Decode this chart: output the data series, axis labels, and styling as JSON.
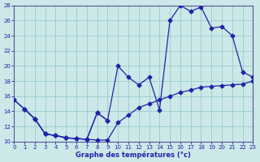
{
  "xlabel": "Graphe des températures (°c)",
  "xlim": [
    0,
    23
  ],
  "ylim": [
    10,
    28
  ],
  "xticks": [
    0,
    1,
    2,
    3,
    4,
    5,
    6,
    7,
    8,
    9,
    10,
    11,
    12,
    13,
    14,
    15,
    16,
    17,
    18,
    19,
    20,
    21,
    22,
    23
  ],
  "yticks": [
    10,
    12,
    14,
    16,
    18,
    20,
    22,
    24,
    26,
    28
  ],
  "background_color": "#cce8e8",
  "grid_color": "#99cccc",
  "line_color": "#2222aa",
  "line_A": {
    "x": [
      0,
      1,
      2,
      3,
      4,
      5,
      6,
      7,
      8,
      9,
      10,
      11,
      12,
      13,
      14,
      15,
      16,
      17,
      18,
      19,
      20,
      21,
      22,
      23
    ],
    "y": [
      15.5,
      14.3,
      13.0,
      11.0,
      10.8,
      10.5,
      10.4,
      10.3,
      13.8,
      12.8,
      20.0,
      18.5,
      17.5,
      18.5,
      14.2,
      26.0,
      28.0,
      27.2,
      27.8,
      25.0,
      25.2,
      24.0,
      19.2,
      18.5
    ]
  },
  "line_B": {
    "x": [
      0,
      1,
      2,
      3,
      4,
      5,
      6,
      7,
      8,
      9,
      10,
      11,
      12,
      13,
      14,
      15,
      16,
      17,
      18,
      19,
      20,
      21,
      22,
      23
    ],
    "y": [
      15.5,
      14.3,
      13.0,
      11.0,
      10.8,
      10.5,
      10.4,
      10.3,
      10.2,
      10.2,
      12.5,
      13.5,
      14.5,
      15.0,
      15.5,
      16.0,
      16.5,
      16.8,
      17.2,
      17.3,
      17.4,
      17.5,
      17.6,
      18.0
    ]
  },
  "line_C": {
    "x": [
      1,
      2,
      3,
      4,
      5,
      6,
      7,
      8,
      9
    ],
    "y": [
      14.3,
      13.0,
      11.0,
      10.8,
      10.5,
      10.4,
      10.3,
      13.8,
      12.8
    ]
  }
}
